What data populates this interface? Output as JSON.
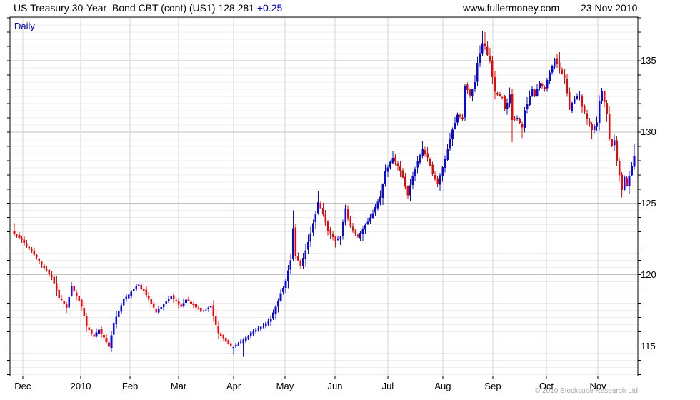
{
  "header": {
    "title": "US Treasury 30-Year  Bond CBT (cont) (US1)",
    "last_price": "128.281",
    "change": "+0.25",
    "website": "www.fullermoney.com",
    "date": "23 Nov 2010"
  },
  "chart": {
    "timeframe_label": "Daily",
    "copyright": "© 2010 Stockcube Research Ltd"
  },
  "colors": {
    "up_candle": "#0909e6",
    "down_candle": "#ee0606",
    "accent_blue": "#0000bb",
    "grid_minor": "#ededed",
    "grid_major": "#c0c0c0",
    "grid_month": "#d4d4d4",
    "frame": "#000000",
    "copyright_gray": "#a9a9a9"
  },
  "chart_data": {
    "type": "candlestick",
    "title": "US Treasury 30-Year Bond CBT (cont) (US1)",
    "timeframe": "Daily",
    "last_close": 128.281,
    "change": 0.25,
    "ylim": [
      112.9,
      138.05
    ],
    "y_ticks": [
      115,
      120,
      125,
      130,
      135
    ],
    "y_minor_tick_step": 1,
    "y_grid_step": 0.5,
    "y_major_step": 5,
    "grid": true,
    "n_days": 250,
    "x_months": [
      {
        "label": "Dec",
        "day": 3.4
      },
      {
        "label": "2010",
        "day": 26.7
      },
      {
        "label": "Feb",
        "day": 46.5
      },
      {
        "label": "Mar",
        "day": 66.0
      },
      {
        "label": "Apr",
        "day": 88.1
      },
      {
        "label": "May",
        "day": 108.7
      },
      {
        "label": "Jun",
        "day": 128.8
      },
      {
        "label": "Jul",
        "day": 150.0
      },
      {
        "label": "Aug",
        "day": 172.1
      },
      {
        "label": "Sep",
        "day": 192.2
      },
      {
        "label": "Oct",
        "day": 213.7
      },
      {
        "label": "Nov",
        "day": 234.4
      }
    ],
    "price_path": [
      [
        0,
        122.9
      ],
      [
        3,
        122.4
      ],
      [
        7,
        121.7
      ],
      [
        11,
        120.7
      ],
      [
        15,
        119.9
      ],
      [
        18,
        118.4
      ],
      [
        21,
        117.7
      ],
      [
        23,
        119.2
      ],
      [
        27,
        117.8
      ],
      [
        29,
        116.4
      ],
      [
        32,
        115.6
      ],
      [
        34,
        116.2
      ],
      [
        38,
        115.0
      ],
      [
        40,
        116.6
      ],
      [
        44,
        118.3
      ],
      [
        47,
        118.8
      ],
      [
        50,
        119.3
      ],
      [
        53,
        118.6
      ],
      [
        57,
        117.4
      ],
      [
        60,
        117.9
      ],
      [
        63,
        118.5
      ],
      [
        67,
        117.7
      ],
      [
        69,
        118.3
      ],
      [
        72,
        117.9
      ],
      [
        75,
        117.4
      ],
      [
        79,
        117.8
      ],
      [
        82,
        115.9
      ],
      [
        85,
        115.3
      ],
      [
        88,
        114.9
      ],
      [
        92,
        115.4
      ],
      [
        95,
        115.9
      ],
      [
        99,
        116.3
      ],
      [
        103,
        116.9
      ],
      [
        106,
        118.2
      ],
      [
        109,
        119.6
      ],
      [
        111,
        121.0
      ],
      [
        112,
        123.2
      ],
      [
        113,
        121.3
      ],
      [
        115,
        120.6
      ],
      [
        118,
        122.3
      ],
      [
        120,
        123.6
      ],
      [
        122,
        125.1
      ],
      [
        124,
        124.2
      ],
      [
        126,
        123.1
      ],
      [
        129,
        122.3
      ],
      [
        131,
        122.7
      ],
      [
        133,
        124.6
      ],
      [
        135,
        123.4
      ],
      [
        138,
        122.7
      ],
      [
        141,
        123.5
      ],
      [
        144,
        124.3
      ],
      [
        147,
        125.5
      ],
      [
        149,
        127.2
      ],
      [
        152,
        128.2
      ],
      [
        154,
        127.6
      ],
      [
        156,
        126.8
      ],
      [
        158,
        125.6
      ],
      [
        161,
        127.5
      ],
      [
        164,
        128.8
      ],
      [
        166,
        128.2
      ],
      [
        168,
        127.0
      ],
      [
        170,
        126.4
      ],
      [
        172,
        127.5
      ],
      [
        174,
        128.8
      ],
      [
        176,
        130.2
      ],
      [
        178,
        131.2
      ],
      [
        180,
        131.0
      ],
      [
        181,
        133.2
      ],
      [
        183,
        132.6
      ],
      [
        185,
        133.5
      ],
      [
        186,
        134.8
      ],
      [
        188,
        136.2
      ],
      [
        189,
        136.0
      ],
      [
        191,
        134.9
      ],
      [
        193,
        132.8
      ],
      [
        196,
        132.4
      ],
      [
        197,
        131.6
      ],
      [
        199,
        132.6
      ],
      [
        200,
        130.8
      ],
      [
        202,
        131.0
      ],
      [
        204,
        130.3
      ],
      [
        205,
        131.5
      ],
      [
        208,
        133.0
      ],
      [
        209,
        132.6
      ],
      [
        211,
        133.4
      ],
      [
        213,
        133.0
      ],
      [
        215,
        134.2
      ],
      [
        217,
        135.1
      ],
      [
        219,
        134.4
      ],
      [
        221,
        133.8
      ],
      [
        223,
        131.6
      ],
      [
        225,
        132.4
      ],
      [
        227,
        132.6
      ],
      [
        228,
        131.8
      ],
      [
        230,
        130.9
      ],
      [
        232,
        130.2
      ],
      [
        234,
        130.6
      ],
      [
        235,
        132.2
      ],
      [
        236,
        132.9
      ],
      [
        238,
        131.3
      ],
      [
        239,
        129.5
      ],
      [
        240,
        129.0
      ],
      [
        241,
        129.4
      ],
      [
        242,
        128.0
      ],
      [
        243,
        127.0
      ],
      [
        244,
        125.9
      ],
      [
        245,
        126.8
      ],
      [
        246,
        126.2
      ],
      [
        247,
        126.9
      ],
      [
        248,
        127.6
      ],
      [
        249,
        128.281
      ]
    ],
    "wick_highs": [
      [
        0,
        123.6
      ],
      [
        50,
        119.6
      ],
      [
        112,
        124.5
      ],
      [
        122,
        125.9
      ],
      [
        133,
        124.9
      ],
      [
        152,
        128.65
      ],
      [
        164,
        129.4
      ],
      [
        188,
        137.1
      ],
      [
        189,
        137.0
      ],
      [
        219,
        135.6
      ],
      [
        236,
        133.1
      ],
      [
        249,
        129.15
      ]
    ],
    "wick_lows": [
      [
        21,
        117.3
      ],
      [
        38,
        114.6
      ],
      [
        88,
        114.4
      ],
      [
        92,
        114.25
      ],
      [
        129,
        121.9
      ],
      [
        140,
        122.35
      ],
      [
        158,
        125.3
      ],
      [
        170,
        126.2
      ],
      [
        200,
        129.3
      ],
      [
        204,
        129.6
      ],
      [
        232,
        129.5
      ],
      [
        244,
        125.4
      ]
    ]
  }
}
